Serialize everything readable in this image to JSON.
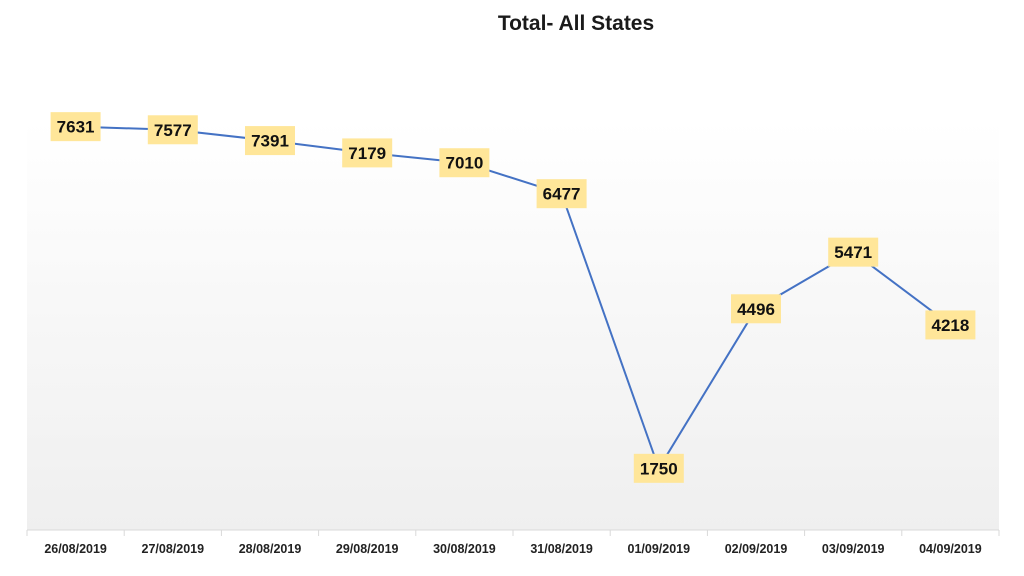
{
  "chart_data": {
    "type": "line",
    "title": "Total- All States",
    "xlabel": "",
    "ylabel": "",
    "categories": [
      "26/08/2019",
      "27/08/2019",
      "28/08/2019",
      "29/08/2019",
      "30/08/2019",
      "31/08/2019",
      "01/09/2019",
      "02/09/2019",
      "03/09/2019",
      "04/09/2019"
    ],
    "series": [
      {
        "values": [
          7631,
          7577,
          7391,
          7179,
          7010,
          6477,
          1750,
          4496,
          5471,
          4218
        ]
      }
    ],
    "ylim": [
      0,
      8000
    ],
    "grid": false,
    "legend": "none",
    "data_labels": true,
    "colors": {
      "line": "#4472C4",
      "label_bg": "#FFE699",
      "axis": "#D9D9D9"
    }
  }
}
